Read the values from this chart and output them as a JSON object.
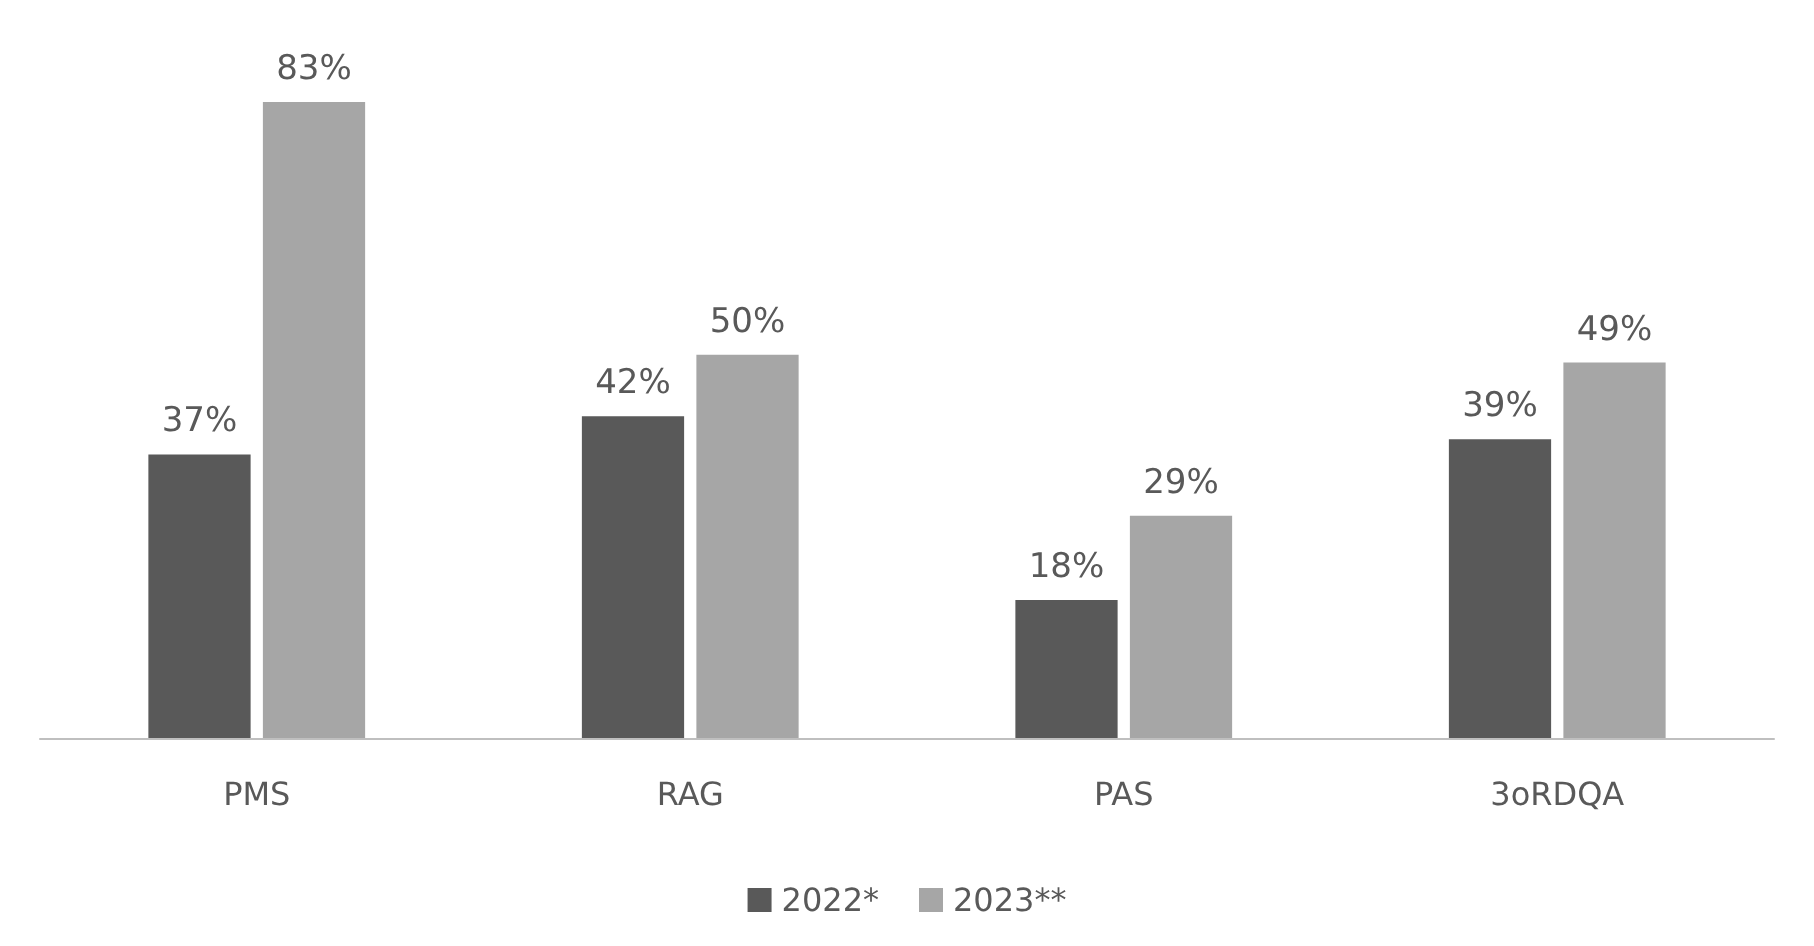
{
  "chart_data": {
    "type": "bar",
    "categories": [
      "PMS",
      "RAG",
      "PAS",
      "3oRDQA"
    ],
    "series": [
      {
        "name": "2022*",
        "color": "#595959",
        "values": [
          37,
          42,
          18,
          39
        ],
        "value_labels": [
          "37%",
          "42%",
          "18%",
          "39%"
        ]
      },
      {
        "name": "2023**",
        "color": "#a6a6a6",
        "values": [
          83,
          50,
          29,
          49
        ],
        "value_labels": [
          "83%",
          "50%",
          "29%",
          "49%"
        ]
      }
    ],
    "legend": "bottom",
    "grid": false
  }
}
